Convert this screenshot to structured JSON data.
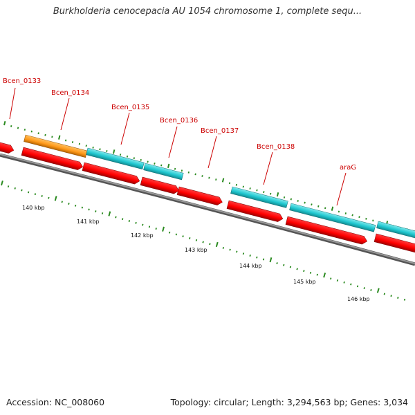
{
  "title": "Burkholderia cenocepacia AU 1054 chromosome 1, complete sequ...",
  "footer": {
    "accession": "Accession: NC_008060",
    "summary": "Topology: circular; Length: 3,294,563 bp; Genes: 3,034"
  },
  "gene_labels": [
    "Bcen_0133",
    "Bcen_0134",
    "Bcen_0135",
    "Bcen_0136",
    "Bcen_0137",
    "Bcen_0138",
    "araG"
  ],
  "scale_labels": [
    "140 kbp",
    "141 kbp",
    "142 kbp",
    "143 kbp",
    "144 kbp",
    "145 kbp",
    "146 kbp"
  ],
  "colors": {
    "cds_forward": "#ff0000",
    "gene_feature": "#20c8d0",
    "orange_feature": "#ff9a1a",
    "label_red": "#cc0000",
    "tick_green": "#2a8a1f",
    "backbone": "#7a7a7a"
  }
}
